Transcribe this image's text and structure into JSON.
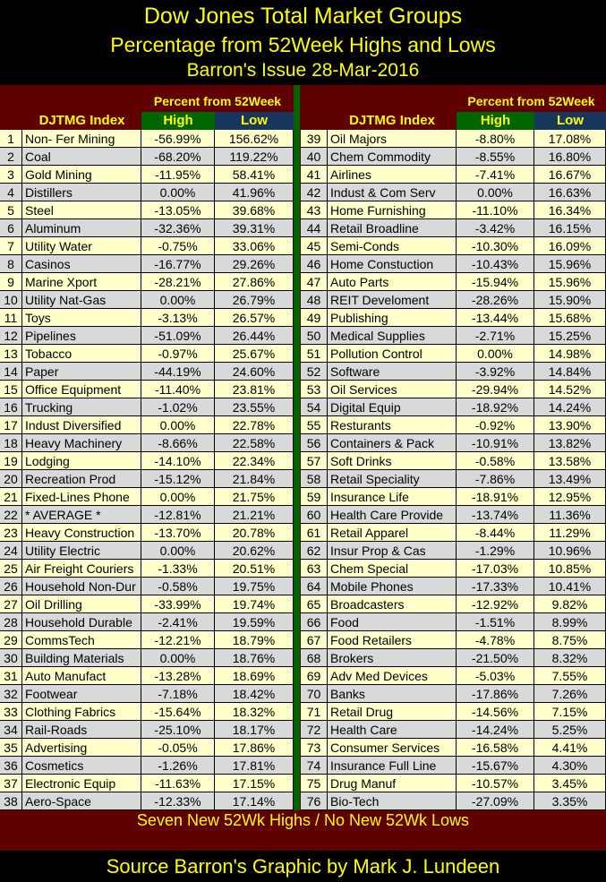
{
  "title": "Dow Jones Total Market Groups",
  "subtitle": "Percentage from 52Week Highs and Lows",
  "issue": "Barron's Issue 28-Mar-2016",
  "colors": {
    "background": "#000000",
    "band": "#600000",
    "high_header": "#006400",
    "low_header": "#17375e",
    "text": "#ffff00",
    "row_odd": "#ffffcc",
    "row_even": "#d9d9d9"
  },
  "chart_data": {
    "type": "table",
    "group_header": "Percent from 52Week",
    "columns": [
      "DJTMG Index",
      "High",
      "Low"
    ],
    "rows": [
      [
        "1",
        "Non- Fer Mining",
        "-56.99%",
        "156.62%"
      ],
      [
        "2",
        "Coal",
        "-68.20%",
        "119.22%"
      ],
      [
        "3",
        "Gold Mining",
        "-11.95%",
        "58.41%"
      ],
      [
        "4",
        "Distillers",
        "0.00%",
        "41.96%"
      ],
      [
        "5",
        "Steel",
        "-13.05%",
        "39.68%"
      ],
      [
        "6",
        "Aluminum",
        "-32.36%",
        "39.31%"
      ],
      [
        "7",
        "Utility Water",
        "-0.75%",
        "33.06%"
      ],
      [
        "8",
        "Casinos",
        "-16.77%",
        "29.26%"
      ],
      [
        "9",
        "Marine Xport",
        "-28.21%",
        "27.86%"
      ],
      [
        "10",
        "Utility Nat-Gas",
        "0.00%",
        "26.79%"
      ],
      [
        "11",
        "Toys",
        "-3.13%",
        "26.57%"
      ],
      [
        "12",
        "Pipelines",
        "-51.09%",
        "26.44%"
      ],
      [
        "13",
        "Tobacco",
        "-0.97%",
        "25.67%"
      ],
      [
        "14",
        "Paper",
        "-44.19%",
        "24.60%"
      ],
      [
        "15",
        "Office Equipment",
        "-11.40%",
        "23.81%"
      ],
      [
        "16",
        "Trucking",
        "-1.02%",
        "23.55%"
      ],
      [
        "17",
        "Indust Diversified",
        "0.00%",
        "22.78%"
      ],
      [
        "18",
        "Heavy Machinery",
        "-8.66%",
        "22.58%"
      ],
      [
        "19",
        "Lodging",
        "-14.10%",
        "22.34%"
      ],
      [
        "20",
        "Recreation Prod",
        "-15.12%",
        "21.84%"
      ],
      [
        "21",
        "Fixed-Lines Phone",
        "0.00%",
        "21.75%"
      ],
      [
        "22",
        "* AVERAGE *",
        "-12.81%",
        "21.21%"
      ],
      [
        "23",
        "Heavy Construction",
        "-13.70%",
        "20.78%"
      ],
      [
        "24",
        "Utility Electric",
        "0.00%",
        "20.62%"
      ],
      [
        "25",
        "Air Freight Couriers",
        "-1.33%",
        "20.51%"
      ],
      [
        "26",
        "Household Non-Dur",
        "-0.58%",
        "19.75%"
      ],
      [
        "27",
        "Oil Drilling",
        "-33.99%",
        "19.74%"
      ],
      [
        "28",
        "Household Durable",
        "-2.41%",
        "19.59%"
      ],
      [
        "29",
        "CommsTech",
        "-12.21%",
        "18.79%"
      ],
      [
        "30",
        "Building Materials",
        "0.00%",
        "18.76%"
      ],
      [
        "31",
        "Auto Manufact",
        "-13.28%",
        "18.69%"
      ],
      [
        "32",
        "Footwear",
        "-7.18%",
        "18.42%"
      ],
      [
        "33",
        "Clothing Fabrics",
        "-15.64%",
        "18.32%"
      ],
      [
        "34",
        "Rail-Roads",
        "-25.10%",
        "18.17%"
      ],
      [
        "35",
        "Advertising",
        "-0.05%",
        "17.86%"
      ],
      [
        "36",
        "Cosmetics",
        "-1.26%",
        "17.81%"
      ],
      [
        "37",
        "Electronic Equip",
        "-11.63%",
        "17.15%"
      ],
      [
        "38",
        "Aero-Space",
        "-12.33%",
        "17.14%"
      ],
      [
        "39",
        "Oil Majors",
        "-8.80%",
        "17.08%"
      ],
      [
        "40",
        "Chem Commodity",
        "-8.55%",
        "16.80%"
      ],
      [
        "41",
        "Airlines",
        "-7.41%",
        "16.67%"
      ],
      [
        "42",
        "Indust & Com Serv",
        "0.00%",
        "16.63%"
      ],
      [
        "43",
        "Home Furnishing",
        "-11.10%",
        "16.34%"
      ],
      [
        "44",
        "Retail Broadline",
        "-3.42%",
        "16.15%"
      ],
      [
        "45",
        "Semi-Conds",
        "-10.30%",
        "16.09%"
      ],
      [
        "46",
        "Home Constuction",
        "-10.43%",
        "15.96%"
      ],
      [
        "47",
        "Auto Parts",
        "-15.94%",
        "15.96%"
      ],
      [
        "48",
        "REIT Develoment",
        "-28.26%",
        "15.90%"
      ],
      [
        "49",
        "Publishing",
        "-13.44%",
        "15.68%"
      ],
      [
        "50",
        "Medical Supplies",
        "-2.71%",
        "15.25%"
      ],
      [
        "51",
        "Pollution Control",
        "0.00%",
        "14.98%"
      ],
      [
        "52",
        "Software",
        "-3.92%",
        "14.84%"
      ],
      [
        "53",
        "Oil Services",
        "-29.94%",
        "14.52%"
      ],
      [
        "54",
        "Digital Equip",
        "-18.92%",
        "14.24%"
      ],
      [
        "55",
        "Resturants",
        "-0.92%",
        "13.90%"
      ],
      [
        "56",
        "Containers & Pack",
        "-10.91%",
        "13.82%"
      ],
      [
        "57",
        "Soft Drinks",
        "-0.58%",
        "13.58%"
      ],
      [
        "58",
        "Retail Speciality",
        "-7.86%",
        "13.49%"
      ],
      [
        "59",
        "Insurance Life",
        "-18.91%",
        "12.95%"
      ],
      [
        "60",
        "Health Care Provide",
        "-13.74%",
        "11.36%"
      ],
      [
        "61",
        "Retail Apparel",
        "-8.44%",
        "11.29%"
      ],
      [
        "62",
        "Insur Prop & Cas",
        "-1.29%",
        "10.96%"
      ],
      [
        "63",
        "Chem Special",
        "-17.03%",
        "10.85%"
      ],
      [
        "64",
        "Mobile Phones",
        "-17.33%",
        "10.41%"
      ],
      [
        "65",
        "Broadcasters",
        "-12.92%",
        "9.82%"
      ],
      [
        "66",
        "Food",
        "-1.51%",
        "8.99%"
      ],
      [
        "67",
        "Food Retailers",
        "-4.78%",
        "8.75%"
      ],
      [
        "68",
        "Brokers",
        "-21.50%",
        "8.32%"
      ],
      [
        "69",
        "Adv Med Devices",
        "-5.03%",
        "7.55%"
      ],
      [
        "70",
        "Banks",
        "-17.86%",
        "7.26%"
      ],
      [
        "71",
        "Retail Drug",
        "-14.56%",
        "7.15%"
      ],
      [
        "72",
        "Health Care",
        "-14.24%",
        "5.25%"
      ],
      [
        "73",
        "Consumer Services",
        "-16.58%",
        "4.41%"
      ],
      [
        "74",
        "Insurance Full Line",
        "-15.67%",
        "4.30%"
      ],
      [
        "75",
        "Drug Manuf",
        "-10.57%",
        "3.45%"
      ],
      [
        "76",
        "Bio-Tech",
        "-27.09%",
        "3.35%"
      ]
    ]
  },
  "footer_note": "Seven New 52Wk Highs /  No New 52Wk Lows",
  "source": "Source Barron's  Graphic by Mark J. Lundeen"
}
